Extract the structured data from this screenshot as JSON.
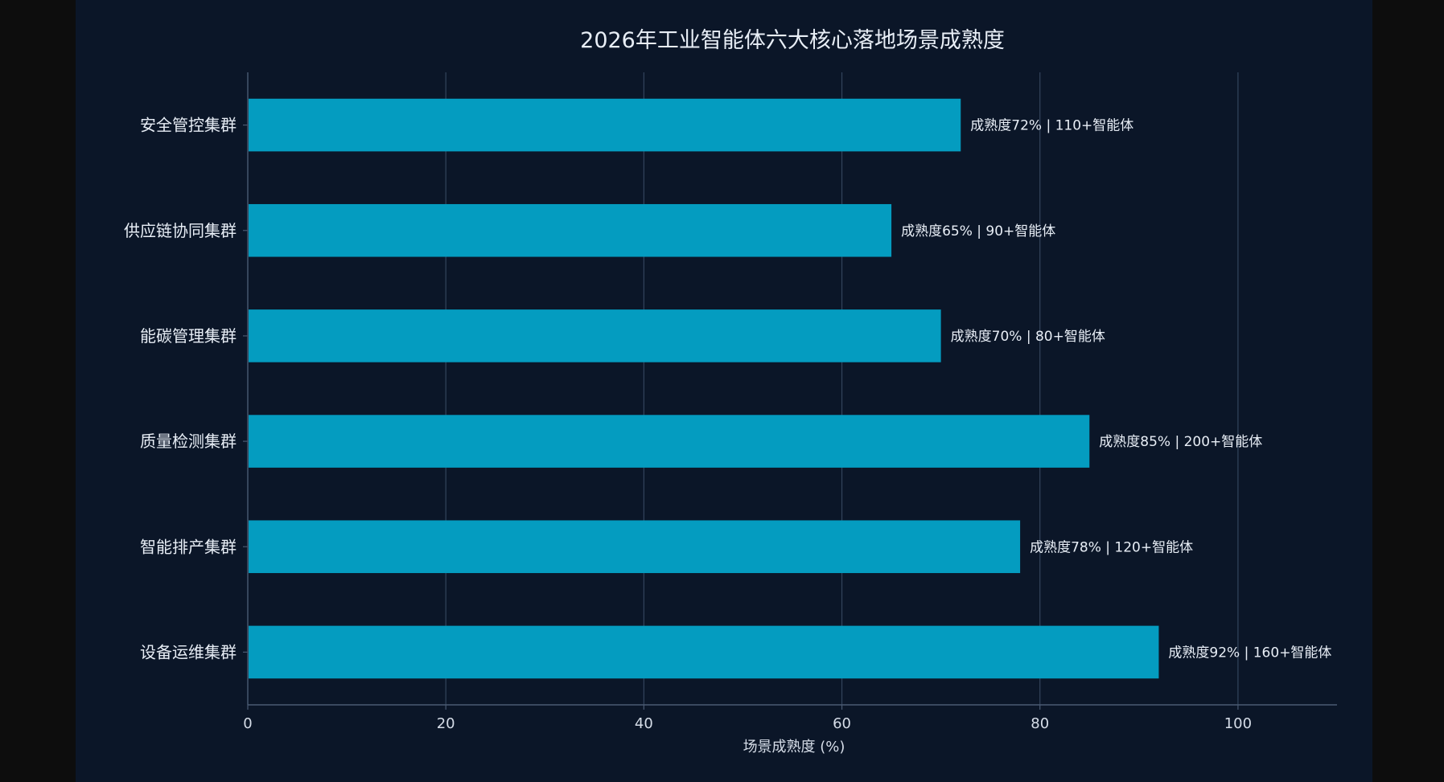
{
  "chart_data": {
    "type": "bar",
    "orientation": "horizontal",
    "title": "2026年工业智能体六大核心落地场景成熟度",
    "xlabel": "场景成熟度 (%)",
    "ylabel": "",
    "xlim": [
      0,
      110
    ],
    "xticks": [
      0,
      20,
      40,
      60,
      80,
      100
    ],
    "grid": "vertical",
    "legend": "none",
    "bar_color": "#049cc0",
    "background": "#0b1628",
    "categories": [
      "安全管控集群",
      "供应链协同集群",
      "能碳管理集群",
      "质量检测集群",
      "智能排产集群",
      "设备运维集群"
    ],
    "values": [
      72,
      65,
      70,
      85,
      78,
      92
    ],
    "data_labels": [
      "成熟度72% | 110+智能体",
      "成熟度65% | 90+智能体",
      "成熟度70% | 80+智能体",
      "成熟度85% | 200+智能体",
      "成熟度78% | 120+智能体",
      "成熟度92% | 160+智能体"
    ]
  }
}
